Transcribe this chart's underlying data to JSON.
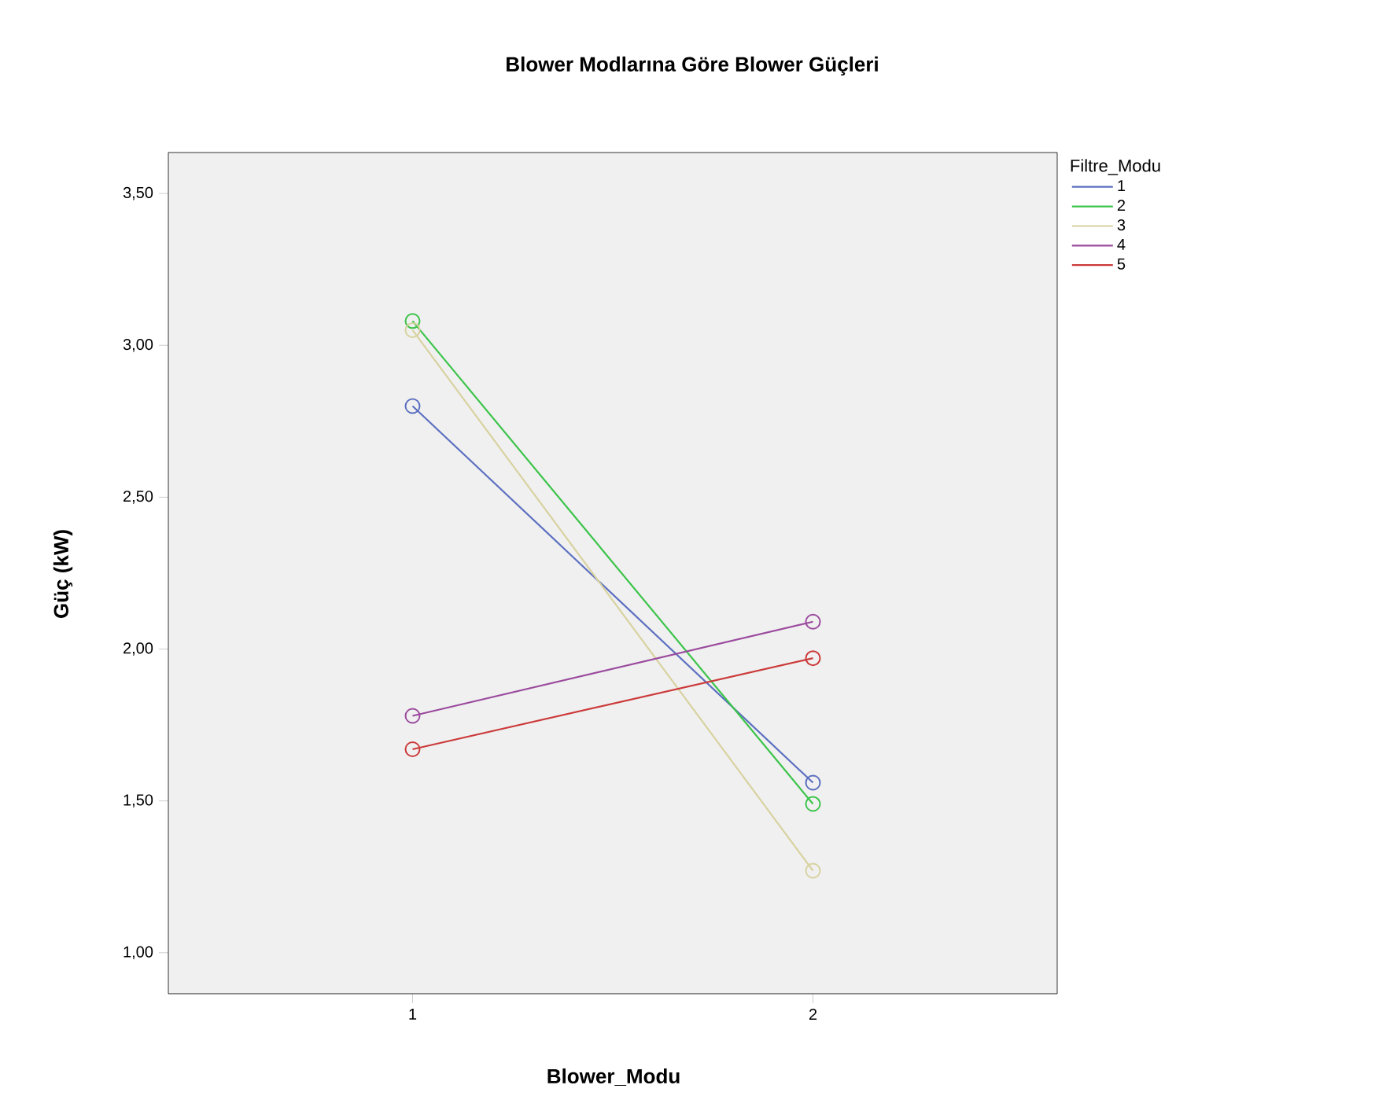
{
  "chart_data": {
    "type": "line",
    "title": "Blower Modlarına Göre Blower Güçleri",
    "xlabel": "Blower_Modu",
    "ylabel": "Güç (kW)",
    "legend_title": "Filtre_Modu",
    "x": [
      1,
      2
    ],
    "xlim": [
      0.39,
      2.61
    ],
    "xticks": [
      1,
      2
    ],
    "ylim": [
      0.865,
      3.635
    ],
    "yticks": [
      {
        "value": 1.0,
        "label": "1,00"
      },
      {
        "value": 1.5,
        "label": "1,50"
      },
      {
        "value": 2.0,
        "label": "2,00"
      },
      {
        "value": 2.5,
        "label": "2,50"
      },
      {
        "value": 3.0,
        "label": "3,00"
      },
      {
        "value": 3.5,
        "label": "3,50"
      }
    ],
    "series": [
      {
        "name": "1",
        "color": "#5b6fc0",
        "values": [
          2.8,
          1.56
        ]
      },
      {
        "name": "2",
        "color": "#3cc44a",
        "values": [
          3.08,
          1.49
        ]
      },
      {
        "name": "3",
        "color": "#d8d2a0",
        "values": [
          3.05,
          1.27
        ]
      },
      {
        "name": "4",
        "color": "#9b4b9e",
        "values": [
          1.78,
          2.09
        ]
      },
      {
        "name": "5",
        "color": "#cc3a3a",
        "values": [
          1.67,
          1.97
        ]
      }
    ],
    "marker": "circle",
    "line_style": "solid",
    "grid": false,
    "legend": "right"
  }
}
